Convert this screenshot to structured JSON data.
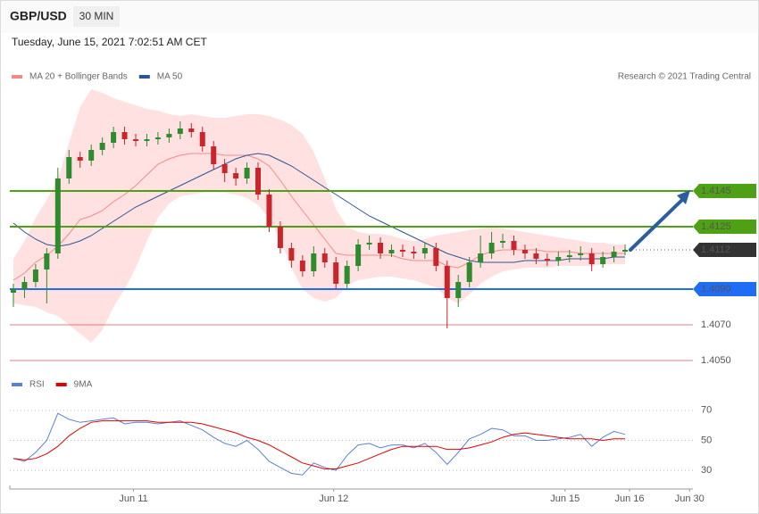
{
  "header": {
    "symbol": "GBP/USD",
    "timeframe": "30 MIN",
    "timestamp": "Tuesday, June 15, 2021 7:02:51 AM CET",
    "credit": "Research © 2021 Trading Central"
  },
  "chart_data": [
    {
      "type": "candlestick",
      "open": [
        1.4088,
        1.409,
        1.4094,
        1.4101,
        1.411,
        1.4152,
        1.4164,
        1.4162,
        1.4168,
        1.4172,
        1.4178,
        1.4174,
        1.4173,
        1.4174,
        1.4175,
        1.4177,
        1.418,
        1.4178,
        1.417,
        1.416,
        1.4155,
        1.4152,
        1.4158,
        1.4143,
        1.4125,
        1.4113,
        1.4106,
        1.41,
        1.411,
        1.4105,
        1.4093,
        1.4103,
        1.4115,
        1.4116,
        1.411,
        1.4112,
        1.4111,
        1.411,
        1.4113,
        1.4103,
        1.4085,
        1.4094,
        1.4105,
        1.411,
        1.4116,
        1.4117,
        1.4112,
        1.411,
        1.4107,
        1.4106,
        1.4108,
        1.4109,
        1.411,
        1.4104,
        1.4108,
        1.4111
      ],
      "high": [
        1.4093,
        1.4097,
        1.4104,
        1.4113,
        1.4158,
        1.4168,
        1.4167,
        1.4171,
        1.4175,
        1.4181,
        1.4181,
        1.4177,
        1.4177,
        1.4178,
        1.418,
        1.4184,
        1.4183,
        1.4181,
        1.4173,
        1.4163,
        1.4158,
        1.4161,
        1.4161,
        1.4146,
        1.4128,
        1.4116,
        1.4109,
        1.4114,
        1.4113,
        1.4108,
        1.4106,
        1.4118,
        1.412,
        1.4119,
        1.4115,
        1.4115,
        1.4114,
        1.4116,
        1.4116,
        1.4106,
        1.4098,
        1.4108,
        1.412,
        1.4122,
        1.4121,
        1.412,
        1.4115,
        1.4113,
        1.411,
        1.4111,
        1.4112,
        1.4114,
        1.4113,
        1.4111,
        1.4114,
        1.4115
      ],
      "low": [
        1.408,
        1.4085,
        1.4091,
        1.4082,
        1.4107,
        1.4149,
        1.4158,
        1.4159,
        1.4165,
        1.4169,
        1.4171,
        1.417,
        1.417,
        1.4171,
        1.4172,
        1.4174,
        1.4175,
        1.4167,
        1.4157,
        1.415,
        1.4148,
        1.4149,
        1.414,
        1.4122,
        1.411,
        1.4102,
        1.4097,
        1.4097,
        1.4102,
        1.409,
        1.409,
        1.41,
        1.4112,
        1.4107,
        1.4108,
        1.4108,
        1.4107,
        1.4107,
        1.41,
        1.4068,
        1.408,
        1.4091,
        1.4102,
        1.4107,
        1.4113,
        1.4109,
        1.4107,
        1.4104,
        1.4103,
        1.4103,
        1.4105,
        1.4106,
        1.41,
        1.4102,
        1.4105,
        1.4109
      ],
      "close": [
        1.409,
        1.4094,
        1.4101,
        1.411,
        1.4152,
        1.4164,
        1.4162,
        1.4168,
        1.4172,
        1.4178,
        1.4174,
        1.4173,
        1.4174,
        1.4175,
        1.4177,
        1.418,
        1.4178,
        1.417,
        1.416,
        1.4155,
        1.4152,
        1.4158,
        1.4143,
        1.4125,
        1.4113,
        1.4106,
        1.41,
        1.411,
        1.4105,
        1.4093,
        1.4103,
        1.4115,
        1.4116,
        1.411,
        1.4112,
        1.4111,
        1.411,
        1.4113,
        1.4103,
        1.4085,
        1.4094,
        1.4105,
        1.411,
        1.4116,
        1.4117,
        1.4112,
        1.411,
        1.4107,
        1.4106,
        1.4108,
        1.4109,
        1.411,
        1.4104,
        1.4108,
        1.4111,
        1.4112
      ],
      "up_color": "#2e8b2e",
      "down_color": "#c8262b",
      "series": [
        {
          "name": "MA 20 + Bollinger Bands",
          "color": "#f48a86",
          "band_color": "#ffe1e1",
          "values": [
            1.4095,
            1.4099,
            1.4105,
            1.4109,
            1.4114,
            1.4121,
            1.4129,
            1.4131,
            1.4134,
            1.4139,
            1.4143,
            1.4148,
            1.4154,
            1.416,
            1.4163,
            1.4165,
            1.4166,
            1.4166,
            1.4166,
            1.4165,
            1.4165,
            1.4165,
            1.4163,
            1.4159,
            1.4151,
            1.4142,
            1.4134,
            1.4126,
            1.4118,
            1.411,
            1.4109,
            1.4109,
            1.4109,
            1.4109,
            1.4109,
            1.4107,
            1.4106,
            1.4106,
            1.4106,
            1.4103,
            1.4102,
            1.4105,
            1.4109,
            1.4111,
            1.4112,
            1.4112,
            1.4112,
            1.4112,
            1.4111,
            1.4111,
            1.4111,
            1.411,
            1.411,
            1.411,
            1.411,
            1.411
          ],
          "upper": [
            1.4107,
            1.4117,
            1.413,
            1.414,
            1.4152,
            1.4172,
            1.4192,
            1.4202,
            1.42,
            1.4197,
            1.4195,
            1.4193,
            1.4191,
            1.419,
            1.4188,
            1.4187,
            1.4188,
            1.4187,
            1.4186,
            1.4186,
            1.4187,
            1.4188,
            1.4188,
            1.4187,
            1.4185,
            1.4182,
            1.4177,
            1.4167,
            1.4152,
            1.4135,
            1.4125,
            1.4122,
            1.4121,
            1.4121,
            1.412,
            1.4118,
            1.4117,
            1.4118,
            1.412,
            1.4121,
            1.4122,
            1.4123,
            1.4124,
            1.4125,
            1.4124,
            1.4123,
            1.4122,
            1.4121,
            1.412,
            1.4119,
            1.4118,
            1.4117,
            1.4116,
            1.4116,
            1.4115,
            1.4115
          ],
          "lower": [
            1.4082,
            1.4081,
            1.408,
            1.4077,
            1.4075,
            1.407,
            1.4065,
            1.406,
            1.4067,
            1.408,
            1.409,
            1.4102,
            1.4117,
            1.413,
            1.4138,
            1.4142,
            1.4143,
            1.4144,
            1.4145,
            1.4144,
            1.4143,
            1.4141,
            1.4137,
            1.413,
            1.4117,
            1.4102,
            1.409,
            1.4085,
            1.4083,
            1.4085,
            1.4092,
            1.4095,
            1.4096,
            1.4097,
            1.4097,
            1.4096,
            1.4095,
            1.4093,
            1.4091,
            1.4085,
            1.4082,
            1.4087,
            1.4093,
            1.4097,
            1.41,
            1.4101,
            1.4102,
            1.4102,
            1.4102,
            1.4103,
            1.4103,
            1.4103,
            1.4103,
            1.4104,
            1.4104,
            1.4104
          ]
        },
        {
          "name": "MA 50",
          "color": "#2c5597",
          "values": [
            1.4127,
            1.4122,
            1.4118,
            1.4115,
            1.4114,
            1.4115,
            1.4117,
            1.412,
            1.4124,
            1.4128,
            1.4132,
            1.4136,
            1.4139,
            1.4142,
            1.4145,
            1.4148,
            1.4151,
            1.4154,
            1.4157,
            1.416,
            1.4163,
            1.4165,
            1.4166,
            1.4165,
            1.4162,
            1.4159,
            1.4155,
            1.4151,
            1.4147,
            1.4143,
            1.4139,
            1.4135,
            1.4131,
            1.4128,
            1.4125,
            1.4122,
            1.4119,
            1.4116,
            1.4113,
            1.411,
            1.4108,
            1.4106,
            1.4105,
            1.4105,
            1.4105,
            1.4105,
            1.4106,
            1.4106,
            1.4106,
            1.4106,
            1.4107,
            1.4107,
            1.4107,
            1.4107,
            1.4108,
            1.4108
          ]
        }
      ],
      "levels": [
        {
          "value": 1.4145,
          "color": "#4ea014",
          "box": true
        },
        {
          "value": 1.4125,
          "color": "#4ea014",
          "box": true
        },
        {
          "value": 1.4112,
          "color": "#333333",
          "box": true,
          "dotted": true
        },
        {
          "value": 1.409,
          "label": "1.4090",
          "color": "#1f6cf5",
          "box": true
        },
        {
          "value": 1.407,
          "label": "1.4070",
          "color": "#e02020",
          "box": false
        },
        {
          "value": 1.405,
          "label": "1.4050",
          "color": "#e02020",
          "box": false
        }
      ],
      "xlim": [
        0,
        61.5
      ],
      "ylim": [
        1.4047,
        1.4207
      ]
    },
    {
      "type": "line",
      "series": [
        {
          "name": "RSI",
          "color": "#5b80d9",
          "values": [
            38,
            36,
            42,
            50,
            68,
            64,
            62,
            63,
            64,
            65,
            61,
            62,
            62,
            61,
            62,
            63,
            60,
            57,
            52,
            48,
            46,
            50,
            44,
            36,
            32,
            28,
            27,
            35,
            32,
            30,
            40,
            47,
            48,
            45,
            47,
            47,
            45,
            48,
            42,
            34,
            42,
            51,
            54,
            58,
            57,
            53,
            53,
            50,
            50,
            51,
            52,
            54,
            46,
            52,
            56,
            54
          ]
        },
        {
          "name": "9MA",
          "color": "#e00000",
          "values": [
            38,
            37,
            38,
            41,
            46,
            53,
            58,
            62,
            63,
            63,
            63,
            63,
            63,
            62,
            62,
            62,
            62,
            61,
            59,
            57,
            55,
            52,
            50,
            47,
            43,
            39,
            35,
            33,
            31,
            31,
            33,
            35,
            38,
            41,
            44,
            46,
            46,
            46,
            46,
            44,
            44,
            45,
            47,
            49,
            52,
            54,
            55,
            54,
            53,
            52,
            51,
            51,
            51,
            50,
            51,
            51
          ]
        }
      ],
      "xlim": [
        0,
        61.5
      ],
      "xticks": [
        {
          "value": 10.8,
          "label": "Jun 11"
        },
        {
          "value": 28.8,
          "label": "Jun 12"
        },
        {
          "value": 49.6,
          "label": "Jun 15"
        },
        {
          "value": 55.4,
          "label": "Jun 16"
        },
        {
          "value": 60.8,
          "label": "Jun 30"
        }
      ],
      "ylim": [
        20,
        80
      ],
      "yticks": [
        30,
        50,
        70
      ],
      "grid": true
    }
  ]
}
